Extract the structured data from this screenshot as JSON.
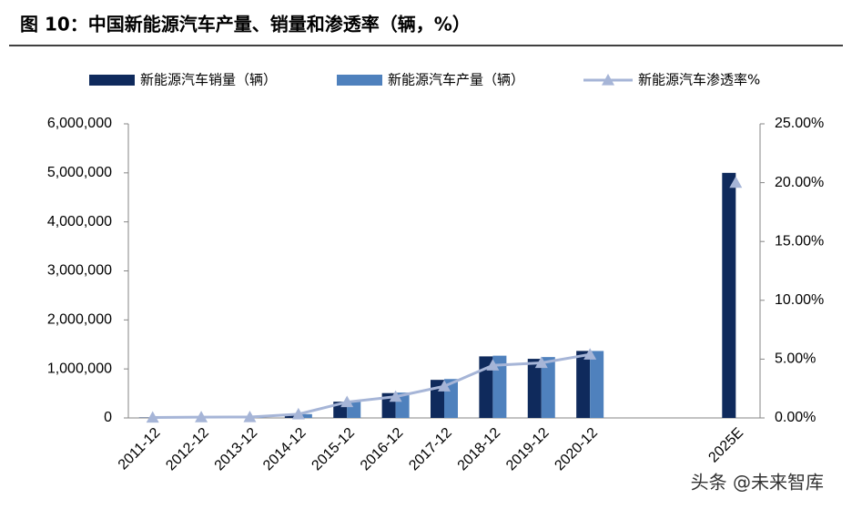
{
  "chart_data": {
    "type": "bar-line",
    "title": "图 10：中国新能源汽车产量、销量和渗透率（辆，%）",
    "categories": [
      "2011-12",
      "2012-12",
      "2013-12",
      "2014-12",
      "2015-12",
      "2016-12",
      "2017-12",
      "2018-12",
      "2019-12",
      "2020-12",
      null,
      null,
      "2025E"
    ],
    "series": [
      {
        "name": "新能源汽车销量（辆）",
        "type": "bar",
        "color": "#0f2a5c",
        "values": [
          8159,
          12791,
          17642,
          74763,
          331092,
          507000,
          777000,
          1256000,
          1206000,
          1367000,
          null,
          null,
          5000000
        ]
      },
      {
        "name": "新能源汽车产量（辆）",
        "type": "bar",
        "color": "#4f81bd",
        "values": [
          8368,
          12552,
          17533,
          78499,
          340471,
          517000,
          794000,
          1270000,
          1242000,
          1366000,
          null,
          null,
          null
        ]
      },
      {
        "name": "新能源汽车渗透率%",
        "type": "line",
        "axis": "y2",
        "color": "#a6b5d7",
        "values": [
          0.04,
          0.07,
          0.08,
          0.32,
          1.35,
          1.81,
          2.69,
          4.47,
          4.68,
          5.4,
          null,
          null,
          20
        ]
      }
    ],
    "ylim": [
      0,
      6000000
    ],
    "yticks": [
      0,
      {
        "value": 1000000,
        "label": "1,000,000"
      },
      {
        "value": 2000000,
        "label": "2,000,000"
      },
      {
        "value": 3000000,
        "label": "3,000,000"
      },
      {
        "value": 4000000,
        "label": "4,000,000"
      },
      {
        "value": 5000000,
        "label": "5,000,000"
      },
      {
        "value": 6000000,
        "label": "6,000,000"
      }
    ],
    "y2lim": [
      0,
      25
    ],
    "y2ticks": [
      {
        "value": 0,
        "label": "0.00%"
      },
      {
        "value": 5,
        "label": "5.00%"
      },
      {
        "value": 10,
        "label": "10.00%"
      },
      {
        "value": 15,
        "label": "15.00%"
      },
      {
        "value": 20,
        "label": "20.00%"
      },
      {
        "value": 25,
        "label": "25.00%"
      }
    ]
  },
  "watermark": "头条 @未来智库"
}
